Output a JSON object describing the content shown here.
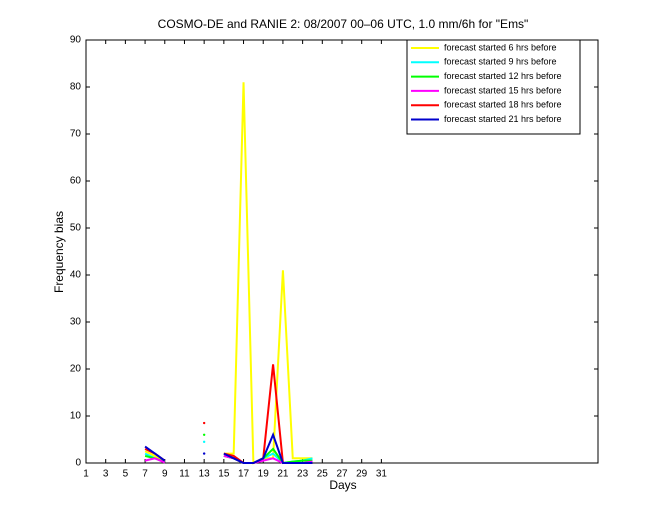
{
  "chart_data": {
    "type": "line",
    "title": "COSMO-DE and RANIE 2: 08/2007 00–06 UTC, 1.0 mm/6h for \"Ems\"",
    "x_label": "Days",
    "y_label": "Frequency bias",
    "x": [
      1,
      2,
      3,
      4,
      5,
      6,
      7,
      8,
      9,
      10,
      11,
      12,
      13,
      14,
      15,
      16,
      17,
      18,
      19,
      20,
      21,
      22,
      23,
      24,
      25,
      26,
      27,
      28,
      29,
      30,
      31
    ],
    "series": [
      {
        "name": "forecast started 6 hrs before",
        "color": "#ffff00",
        "values": [
          null,
          null,
          null,
          null,
          null,
          null,
          2.5,
          1.5,
          0.3,
          null,
          null,
          null,
          null,
          null,
          2,
          2,
          81,
          0,
          1,
          1,
          41,
          1,
          1,
          1,
          null,
          null,
          null,
          null,
          null,
          null,
          null
        ]
      },
      {
        "name": "forecast started 9 hrs before",
        "color": "#00ffff",
        "values": [
          null,
          null,
          null,
          null,
          null,
          null,
          2,
          1,
          0.2,
          null,
          null,
          null,
          4.5,
          null,
          1.5,
          1,
          0,
          0,
          1,
          2,
          0,
          0.3,
          0.5,
          1,
          null,
          null,
          null,
          null,
          null,
          null,
          null
        ]
      },
      {
        "name": "forecast started 12 hrs before",
        "color": "#00ff00",
        "values": [
          null,
          null,
          null,
          null,
          null,
          null,
          1.5,
          1,
          0.2,
          null,
          null,
          null,
          6,
          null,
          1.5,
          1,
          0,
          0,
          1,
          3,
          0,
          0.3,
          0.5,
          0.5,
          null,
          null,
          null,
          null,
          null,
          null,
          null
        ]
      },
      {
        "name": "forecast started 15 hrs before",
        "color": "#ff00ff",
        "values": [
          null,
          null,
          null,
          null,
          null,
          null,
          0.5,
          1,
          0.1,
          null,
          null,
          null,
          null,
          null,
          1.5,
          1,
          0,
          0,
          0.5,
          1,
          0,
          0,
          0,
          0.3,
          null,
          null,
          null,
          null,
          null,
          null,
          null
        ]
      },
      {
        "name": "forecast started 18 hrs before",
        "color": "#ff0000",
        "values": [
          null,
          null,
          null,
          null,
          null,
          null,
          3,
          2,
          0.5,
          null,
          null,
          null,
          8.5,
          null,
          2,
          1.5,
          0,
          0,
          1,
          21,
          0,
          0,
          0,
          0,
          null,
          null,
          null,
          null,
          null,
          null,
          null
        ]
      },
      {
        "name": "forecast started 21 hrs before",
        "color": "#0000cc",
        "values": [
          null,
          null,
          null,
          null,
          null,
          null,
          3.5,
          2,
          0.5,
          null,
          null,
          null,
          2,
          null,
          2,
          1,
          0,
          0,
          1,
          6,
          0,
          0,
          0,
          0,
          null,
          null,
          null,
          null,
          null,
          null,
          null
        ]
      }
    ],
    "xlim": [
      1,
      53
    ],
    "ylim": [
      0,
      90
    ],
    "xticks": [
      1,
      3,
      5,
      7,
      9,
      11,
      13,
      15,
      17,
      19,
      21,
      23,
      25,
      27,
      29,
      31
    ],
    "yticks": [
      0,
      10,
      20,
      30,
      40,
      50,
      60,
      70,
      80,
      90
    ],
    "legend_location": "northeast",
    "grid": false
  }
}
